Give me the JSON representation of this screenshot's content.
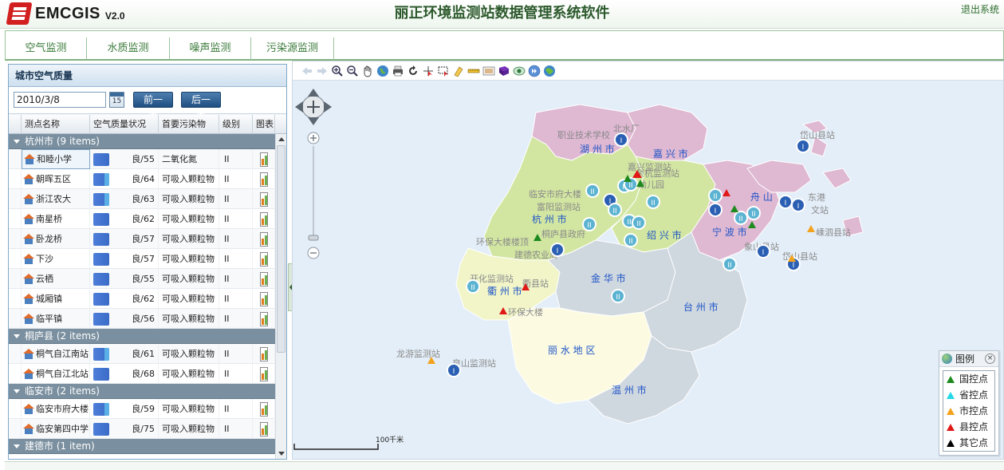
{
  "app": {
    "logo_text": "EMCGIS",
    "version": "V2.0",
    "title": "丽正环境监测站数据管理系统软件",
    "logout": "退出系统"
  },
  "tabs": [
    {
      "label": "空气监测"
    },
    {
      "label": "水质监测"
    },
    {
      "label": "噪声监测"
    },
    {
      "label": "污染源监测"
    }
  ],
  "panel": {
    "title": "城市空气质量",
    "date_value": "2010/3/8",
    "calendar_icon_text": "15",
    "prev_day": "前一天",
    "next_day": "后一天",
    "columns": [
      "测点名称",
      "空气质量状况",
      "首要污染物",
      "级别",
      "图表"
    ]
  },
  "groups": [
    {
      "label": "杭州市 (9 items)",
      "rows": [
        {
          "name": "和睦小学",
          "aq": "良/55",
          "pollutant": "二氧化氮",
          "level": "II"
        },
        {
          "name": "朝晖五区",
          "aq": "良/64",
          "pollutant": "可吸入颗粒物",
          "level": "II"
        },
        {
          "name": "浙江农大",
          "aq": "良/63",
          "pollutant": "可吸入颗粒物",
          "level": "II"
        },
        {
          "name": "南星桥",
          "aq": "良/62",
          "pollutant": "可吸入颗粒物",
          "level": "II"
        },
        {
          "name": "卧龙桥",
          "aq": "良/57",
          "pollutant": "可吸入颗粒物",
          "level": "II"
        },
        {
          "name": "下沙",
          "aq": "良/57",
          "pollutant": "可吸入颗粒物",
          "level": "II"
        },
        {
          "name": "云栖",
          "aq": "良/55",
          "pollutant": "可吸入颗粒物",
          "level": "II"
        },
        {
          "name": "城厢镇",
          "aq": "良/62",
          "pollutant": "可吸入颗粒物",
          "level": "II"
        },
        {
          "name": "临平镇",
          "aq": "良/56",
          "pollutant": "可吸入颗粒物",
          "level": "II"
        }
      ]
    },
    {
      "label": "桐庐县 (2 items)",
      "rows": [
        {
          "name": "桐气自江南站",
          "aq": "良/61",
          "pollutant": "可吸入颗粒物",
          "level": "II"
        },
        {
          "name": "桐气自江北站",
          "aq": "良/68",
          "pollutant": "可吸入颗粒物",
          "level": "II"
        }
      ]
    },
    {
      "label": "临安市 (2 items)",
      "rows": [
        {
          "name": "临安市府大楼",
          "aq": "良/59",
          "pollutant": "可吸入颗粒物",
          "level": "II"
        },
        {
          "name": "临安第四中学",
          "aq": "良/75",
          "pollutant": "可吸入颗粒物",
          "level": "II"
        }
      ]
    },
    {
      "label": "建德市 (1 item)",
      "rows": []
    }
  ],
  "map": {
    "regions": [
      {
        "name": "湖 州 市"
      },
      {
        "name": "嘉 兴 市"
      },
      {
        "name": "杭 州 市"
      },
      {
        "name": "绍 兴 市"
      },
      {
        "name": "宁 波 市"
      },
      {
        "name": "舟 山"
      },
      {
        "name": "衢 州 市"
      },
      {
        "name": "金 华 市"
      },
      {
        "name": "台 州 市"
      },
      {
        "name": "丽 水 地 区"
      },
      {
        "name": "温 州 市"
      }
    ],
    "station_labels": [
      "职业技术学校",
      "北水厂",
      "临安市府大楼",
      "富阳监测站",
      "桐庐县政府",
      "建德农业局",
      "环保大楼楼顶",
      "开化监测站",
      "衢县站",
      "环保大楼",
      "龙游监测站",
      "泉山监测站",
      "岱山县站",
      "岱山县站",
      "嵊泗县站",
      "东港",
      "文站",
      "嘉兴监测站",
      "新幼儿园",
      "象山县站",
      "余杭监测站"
    ],
    "scale_label": "100千米"
  },
  "legend": {
    "title": "图例",
    "close": "×",
    "items": [
      {
        "label": "国控点",
        "color": "#1e8a1e"
      },
      {
        "label": "省控点",
        "color": "#23d8e8"
      },
      {
        "label": "市控点",
        "color": "#f2a21c"
      },
      {
        "label": "县控点",
        "color": "#e01818"
      },
      {
        "label": "其它点",
        "color": "#000000"
      }
    ]
  }
}
